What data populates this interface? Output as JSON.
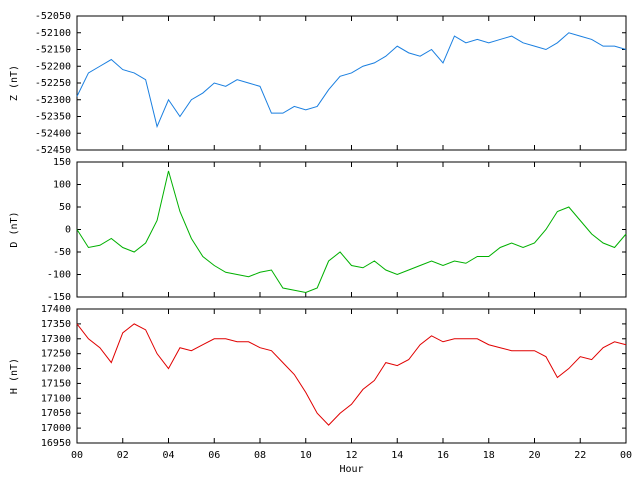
{
  "chart_data": [
    {
      "type": "line",
      "ylabel": "Z (nT)",
      "xlim": [
        0,
        24
      ],
      "ylim": [
        -52450,
        -52050
      ],
      "yticks": [
        -52050,
        -52100,
        -52150,
        -52200,
        -52250,
        -52300,
        -52350,
        -52400,
        -52450
      ],
      "x": [
        0,
        0.5,
        1,
        1.5,
        2,
        2.5,
        3,
        3.5,
        4,
        4.5,
        5,
        5.5,
        6,
        6.5,
        7,
        7.5,
        8,
        8.5,
        9,
        9.5,
        10,
        10.5,
        11,
        11.5,
        12,
        12.5,
        13,
        13.5,
        14,
        14.5,
        15,
        15.5,
        16,
        16.5,
        17,
        17.5,
        18,
        18.5,
        19,
        19.5,
        20,
        20.5,
        21,
        21.5,
        22,
        22.5,
        23,
        23.5,
        24
      ],
      "series": [
        {
          "name": "Z",
          "color": "#1a7fe0",
          "values": [
            -52290,
            -52220,
            -52200,
            -52180,
            -52210,
            -52220,
            -52240,
            -52380,
            -52300,
            -52350,
            -52300,
            -52280,
            -52250,
            -52260,
            -52240,
            -52250,
            -52260,
            -52340,
            -52340,
            -52320,
            -52330,
            -52320,
            -52270,
            -52230,
            -52220,
            -52200,
            -52190,
            -52170,
            -52140,
            -52160,
            -52170,
            -52150,
            -52190,
            -52110,
            -52130,
            -52120,
            -52130,
            -52120,
            -52110,
            -52130,
            -52140,
            -52150,
            -52130,
            -52100,
            -52110,
            -52120,
            -52140,
            -52140,
            -52150
          ]
        }
      ]
    },
    {
      "type": "line",
      "ylabel": "D (nT)",
      "xlim": [
        0,
        24
      ],
      "ylim": [
        -150,
        150
      ],
      "yticks": [
        150,
        100,
        50,
        0,
        -50,
        -100,
        -150
      ],
      "x": [
        0,
        0.5,
        1,
        1.5,
        2,
        2.5,
        3,
        3.5,
        4,
        4.5,
        5,
        5.5,
        6,
        6.5,
        7,
        7.5,
        8,
        8.5,
        9,
        9.5,
        10,
        10.5,
        11,
        11.5,
        12,
        12.5,
        13,
        13.5,
        14,
        14.5,
        15,
        15.5,
        16,
        16.5,
        17,
        17.5,
        18,
        18.5,
        19,
        19.5,
        20,
        20.5,
        21,
        21.5,
        22,
        22.5,
        23,
        23.5,
        24
      ],
      "series": [
        {
          "name": "D",
          "color": "#00b000",
          "values": [
            0,
            -40,
            -35,
            -20,
            -40,
            -50,
            -30,
            20,
            130,
            40,
            -20,
            -60,
            -80,
            -95,
            -100,
            -105,
            -95,
            -90,
            -130,
            -135,
            -140,
            -130,
            -70,
            -50,
            -80,
            -85,
            -70,
            -90,
            -100,
            -90,
            -80,
            -70,
            -80,
            -70,
            -75,
            -60,
            -60,
            -40,
            -30,
            -40,
            -30,
            0,
            40,
            50,
            20,
            -10,
            -30,
            -40,
            -10
          ]
        }
      ]
    },
    {
      "type": "line",
      "ylabel": "H (nT)",
      "xlabel": "Hour",
      "xlim": [
        0,
        24
      ],
      "ylim": [
        16950,
        17400
      ],
      "yticks": [
        17400,
        17350,
        17300,
        17250,
        17200,
        17150,
        17100,
        17050,
        17000,
        16950
      ],
      "xticks": [
        {
          "value": 0,
          "label": "00"
        },
        {
          "value": 2,
          "label": "02"
        },
        {
          "value": 4,
          "label": "04"
        },
        {
          "value": 6,
          "label": "06"
        },
        {
          "value": 8,
          "label": "08"
        },
        10,
        12,
        14,
        16,
        18,
        20,
        22,
        {
          "value": 24,
          "label": "00"
        }
      ],
      "x": [
        0,
        0.5,
        1,
        1.5,
        2,
        2.5,
        3,
        3.5,
        4,
        4.5,
        5,
        5.5,
        6,
        6.5,
        7,
        7.5,
        8,
        8.5,
        9,
        9.5,
        10,
        10.5,
        11,
        11.5,
        12,
        12.5,
        13,
        13.5,
        14,
        14.5,
        15,
        15.5,
        16,
        16.5,
        17,
        17.5,
        18,
        18.5,
        19,
        19.5,
        20,
        20.5,
        21,
        21.5,
        22,
        22.5,
        23,
        23.5,
        24
      ],
      "series": [
        {
          "name": "H",
          "color": "#e00000",
          "values": [
            17350,
            17300,
            17270,
            17220,
            17320,
            17350,
            17330,
            17250,
            17200,
            17270,
            17260,
            17280,
            17300,
            17300,
            17290,
            17290,
            17270,
            17260,
            17220,
            17180,
            17120,
            17050,
            17010,
            17050,
            17080,
            17130,
            17160,
            17220,
            17210,
            17230,
            17280,
            17310,
            17290,
            17300,
            17300,
            17300,
            17280,
            17270,
            17260,
            17260,
            17260,
            17240,
            17170,
            17200,
            17240,
            17230,
            17270,
            17290,
            17280
          ]
        }
      ]
    }
  ]
}
